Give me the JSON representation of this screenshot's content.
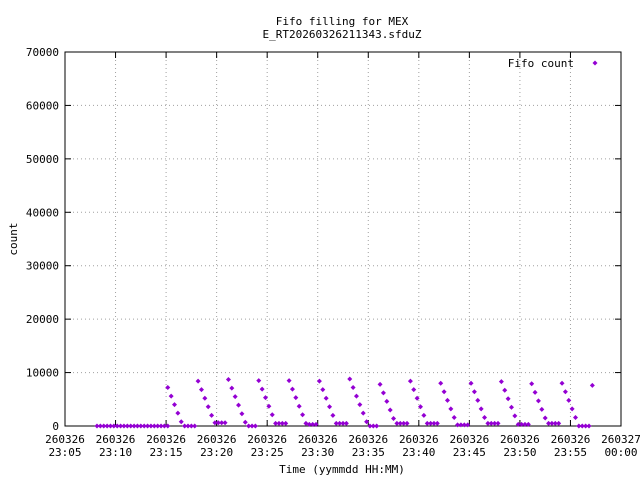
{
  "chart_data": {
    "type": "scatter",
    "title": "Fifo filling for MEX",
    "subtitle": "E_RT20260326211343.sfduZ",
    "xlabel": "Time (yymmdd HH:MM)",
    "ylabel": "count",
    "xlim": [
      "2026-03-26 23:05",
      "2026-03-27 00:00"
    ],
    "ylim": [
      0,
      70000
    ],
    "grid": true,
    "legend": "top-right",
    "x_ticks": [
      {
        "date": "260326",
        "time": "23:05"
      },
      {
        "date": "260326",
        "time": "23:10"
      },
      {
        "date": "260326",
        "time": "23:15"
      },
      {
        "date": "260326",
        "time": "23:20"
      },
      {
        "date": "260326",
        "time": "23:25"
      },
      {
        "date": "260326",
        "time": "23:30"
      },
      {
        "date": "260326",
        "time": "23:35"
      },
      {
        "date": "260326",
        "time": "23:40"
      },
      {
        "date": "260326",
        "time": "23:45"
      },
      {
        "date": "260326",
        "time": "23:50"
      },
      {
        "date": "260326",
        "time": "23:55"
      },
      {
        "date": "260327",
        "time": "00:00"
      }
    ],
    "y_ticks": [
      "0",
      "10000",
      "20000",
      "30000",
      "40000",
      "50000",
      "60000",
      "70000"
    ],
    "series": [
      {
        "name": "Fifo count",
        "color": "#9400d3",
        "marker": "diamond",
        "points": [
          [
            "23:08:10",
            0
          ],
          [
            "23:08:30",
            0
          ],
          [
            "23:08:50",
            0
          ],
          [
            "23:09:10",
            0
          ],
          [
            "23:09:30",
            0
          ],
          [
            "23:09:50",
            0
          ],
          [
            "23:10:10",
            0
          ],
          [
            "23:10:30",
            0
          ],
          [
            "23:10:50",
            0
          ],
          [
            "23:11:10",
            0
          ],
          [
            "23:11:30",
            0
          ],
          [
            "23:11:50",
            0
          ],
          [
            "23:12:10",
            0
          ],
          [
            "23:12:30",
            0
          ],
          [
            "23:12:50",
            0
          ],
          [
            "23:13:10",
            0
          ],
          [
            "23:13:30",
            0
          ],
          [
            "23:13:50",
            0
          ],
          [
            "23:14:10",
            0
          ],
          [
            "23:14:30",
            0
          ],
          [
            "23:14:50",
            0
          ],
          [
            "23:15:10",
            0
          ],
          [
            "23:15:10",
            7200
          ],
          [
            "23:15:30",
            5600
          ],
          [
            "23:15:50",
            4000
          ],
          [
            "23:16:10",
            2400
          ],
          [
            "23:16:30",
            800
          ],
          [
            "23:16:50",
            0
          ],
          [
            "23:17:10",
            0
          ],
          [
            "23:17:30",
            0
          ],
          [
            "23:17:50",
            0
          ],
          [
            "23:18:10",
            8400
          ],
          [
            "23:18:30",
            6800
          ],
          [
            "23:18:50",
            5200
          ],
          [
            "23:19:10",
            3600
          ],
          [
            "23:19:30",
            2000
          ],
          [
            "23:19:50",
            600
          ],
          [
            "23:20:10",
            600
          ],
          [
            "23:20:30",
            600
          ],
          [
            "23:20:50",
            600
          ],
          [
            "23:21:10",
            8700
          ],
          [
            "23:21:30",
            7100
          ],
          [
            "23:21:50",
            5500
          ],
          [
            "23:22:10",
            3900
          ],
          [
            "23:22:30",
            2300
          ],
          [
            "23:22:50",
            700
          ],
          [
            "23:23:10",
            0
          ],
          [
            "23:23:30",
            0
          ],
          [
            "23:23:50",
            0
          ],
          [
            "23:24:10",
            8500
          ],
          [
            "23:24:30",
            6900
          ],
          [
            "23:24:50",
            5300
          ],
          [
            "23:25:10",
            3700
          ],
          [
            "23:25:30",
            2100
          ],
          [
            "23:25:50",
            500
          ],
          [
            "23:26:10",
            500
          ],
          [
            "23:26:30",
            500
          ],
          [
            "23:26:50",
            500
          ],
          [
            "23:27:10",
            8500
          ],
          [
            "23:27:30",
            6900
          ],
          [
            "23:27:50",
            5300
          ],
          [
            "23:28:10",
            3700
          ],
          [
            "23:28:30",
            2100
          ],
          [
            "23:28:50",
            500
          ],
          [
            "23:29:10",
            300
          ],
          [
            "23:29:30",
            300
          ],
          [
            "23:29:50",
            300
          ],
          [
            "23:30:10",
            8400
          ],
          [
            "23:30:30",
            6800
          ],
          [
            "23:30:50",
            5200
          ],
          [
            "23:31:10",
            3600
          ],
          [
            "23:31:30",
            2000
          ],
          [
            "23:31:50",
            500
          ],
          [
            "23:32:10",
            500
          ],
          [
            "23:32:30",
            500
          ],
          [
            "23:32:50",
            500
          ],
          [
            "23:33:10",
            8800
          ],
          [
            "23:33:30",
            7200
          ],
          [
            "23:33:50",
            5600
          ],
          [
            "23:34:10",
            4000
          ],
          [
            "23:34:30",
            2400
          ],
          [
            "23:34:50",
            800
          ],
          [
            "23:35:10",
            0
          ],
          [
            "23:35:30",
            0
          ],
          [
            "23:35:50",
            0
          ],
          [
            "23:36:10",
            7800
          ],
          [
            "23:36:30",
            6200
          ],
          [
            "23:36:50",
            4600
          ],
          [
            "23:37:10",
            3000
          ],
          [
            "23:37:30",
            1400
          ],
          [
            "23:37:50",
            500
          ],
          [
            "23:38:10",
            500
          ],
          [
            "23:38:30",
            500
          ],
          [
            "23:38:50",
            500
          ],
          [
            "23:39:10",
            8400
          ],
          [
            "23:39:30",
            6800
          ],
          [
            "23:39:50",
            5200
          ],
          [
            "23:40:10",
            3600
          ],
          [
            "23:40:30",
            2000
          ],
          [
            "23:40:50",
            500
          ],
          [
            "23:41:10",
            500
          ],
          [
            "23:41:30",
            500
          ],
          [
            "23:41:50",
            500
          ],
          [
            "23:42:10",
            8000
          ],
          [
            "23:42:30",
            6400
          ],
          [
            "23:42:50",
            4800
          ],
          [
            "23:43:10",
            3200
          ],
          [
            "23:43:30",
            1600
          ],
          [
            "23:43:50",
            200
          ],
          [
            "23:44:10",
            200
          ],
          [
            "23:44:30",
            200
          ],
          [
            "23:44:50",
            200
          ],
          [
            "23:45:10",
            8000
          ],
          [
            "23:45:30",
            6400
          ],
          [
            "23:45:50",
            4800
          ],
          [
            "23:46:10",
            3200
          ],
          [
            "23:46:30",
            1600
          ],
          [
            "23:46:50",
            500
          ],
          [
            "23:47:10",
            500
          ],
          [
            "23:47:30",
            500
          ],
          [
            "23:47:50",
            500
          ],
          [
            "23:48:10",
            8300
          ],
          [
            "23:48:30",
            6700
          ],
          [
            "23:48:50",
            5100
          ],
          [
            "23:49:10",
            3500
          ],
          [
            "23:49:30",
            1900
          ],
          [
            "23:49:50",
            300
          ],
          [
            "23:50:10",
            300
          ],
          [
            "23:50:30",
            300
          ],
          [
            "23:50:50",
            300
          ],
          [
            "23:51:10",
            7900
          ],
          [
            "23:51:30",
            6300
          ],
          [
            "23:51:50",
            4700
          ],
          [
            "23:52:10",
            3100
          ],
          [
            "23:52:30",
            1500
          ],
          [
            "23:52:50",
            500
          ],
          [
            "23:53:10",
            500
          ],
          [
            "23:53:30",
            500
          ],
          [
            "23:53:50",
            500
          ],
          [
            "23:54:10",
            8000
          ],
          [
            "23:54:30",
            6400
          ],
          [
            "23:54:50",
            4800
          ],
          [
            "23:55:10",
            3200
          ],
          [
            "23:55:30",
            1600
          ],
          [
            "23:55:50",
            0
          ],
          [
            "23:56:10",
            0
          ],
          [
            "23:56:30",
            0
          ],
          [
            "23:56:50",
            0
          ],
          [
            "23:57:10",
            7600
          ]
        ]
      }
    ]
  }
}
